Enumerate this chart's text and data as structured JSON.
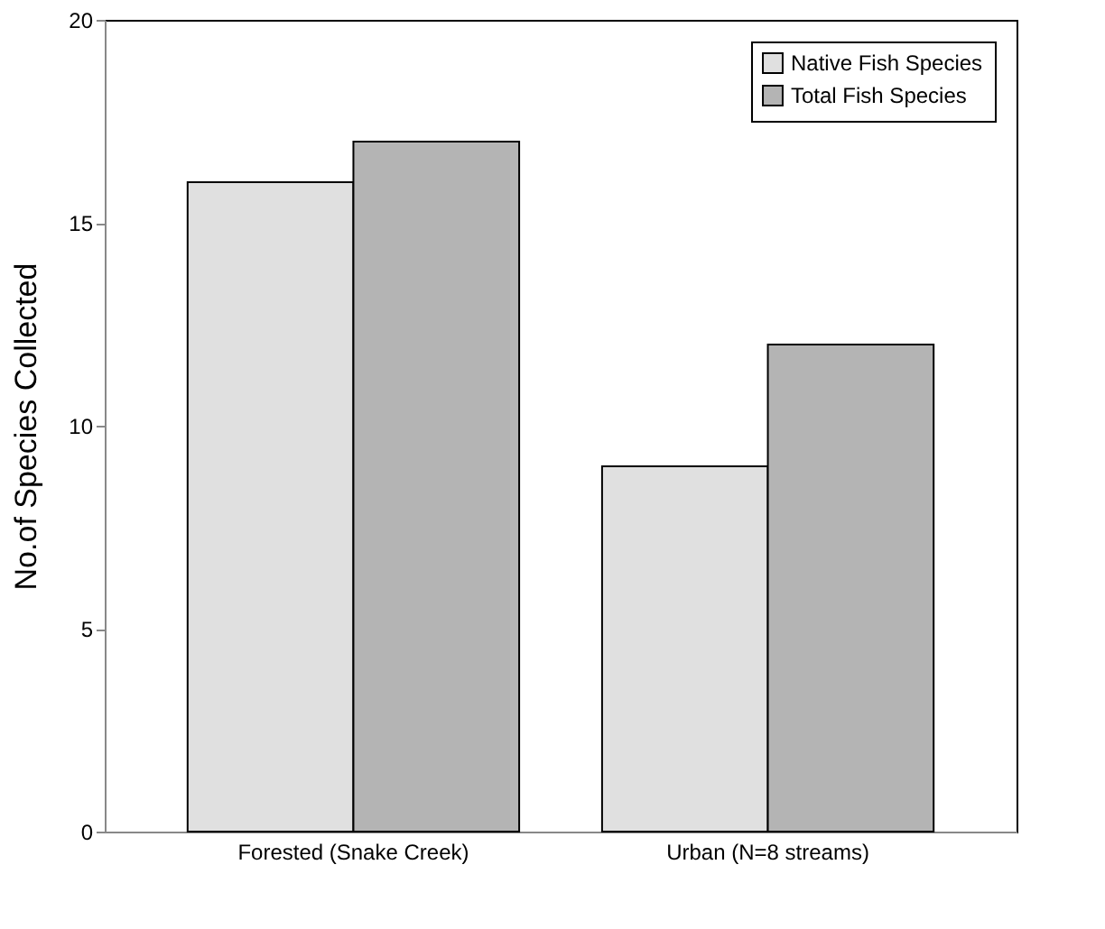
{
  "chart_data": {
    "type": "bar",
    "ylabel": "No.of Species Collected",
    "categories": [
      "Forested (Snake Creek)",
      "Urban (N=8 streams)"
    ],
    "series": [
      {
        "name": "Native Fish Species",
        "color": "#e0e0e0",
        "values": [
          16,
          9
        ]
      },
      {
        "name": "Total Fish Species",
        "color": "#b4b4b4",
        "values": [
          17,
          12
        ]
      }
    ],
    "ylim": [
      0,
      20
    ],
    "yticks": [
      0,
      5,
      10,
      15,
      20
    ],
    "grid": false,
    "legend": "top right"
  }
}
